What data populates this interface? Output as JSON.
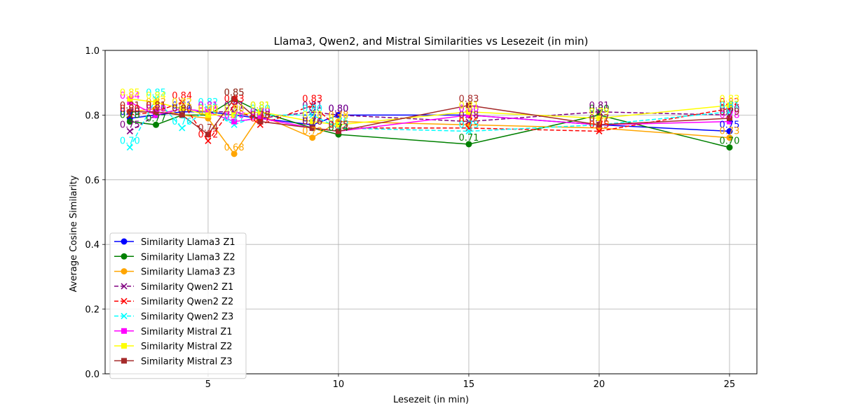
{
  "chart_data": {
    "type": "line",
    "title": "Llama3, Qwen2, and Mistral Similarities vs Lesezeit (in min)",
    "xlabel": "Lesezeit (in min)",
    "ylabel": "Average Cosine Similarity",
    "xlim": [
      1.05,
      26.05
    ],
    "ylim": [
      0.0,
      1.0
    ],
    "xticks": [
      5,
      10,
      15,
      20,
      25
    ],
    "yticks": [
      0.0,
      0.2,
      0.4,
      0.6,
      0.8,
      1.0
    ],
    "grid": true,
    "legend_position": "lower-left",
    "x": [
      2,
      3,
      4,
      5,
      6,
      7,
      9,
      10,
      15,
      20,
      25
    ],
    "series": [
      {
        "name": "Similarity Llama3 Z1",
        "color": "#0000ff",
        "marker": "circle",
        "dash": "solid",
        "values": [
          0.79,
          0.8,
          0.81,
          0.81,
          0.8,
          0.79,
          0.77,
          0.8,
          0.8,
          0.77,
          0.75
        ]
      },
      {
        "name": "Similarity Llama3 Z2",
        "color": "#008000",
        "marker": "circle",
        "dash": "solid",
        "values": [
          0.78,
          0.77,
          0.8,
          0.8,
          0.85,
          0.81,
          0.76,
          0.74,
          0.71,
          0.8,
          0.7
        ]
      },
      {
        "name": "Similarity Llama3 Z3",
        "color": "#ffa500",
        "marker": "circle",
        "dash": "solid",
        "values": [
          0.81,
          0.82,
          0.8,
          0.79,
          0.68,
          0.8,
          0.73,
          0.78,
          0.77,
          0.76,
          0.73
        ]
      },
      {
        "name": "Similarity Qwen2 Z1",
        "color": "#800080",
        "marker": "x",
        "dash": "dashed",
        "values": [
          0.75,
          0.8,
          0.82,
          0.81,
          0.81,
          0.79,
          0.81,
          0.8,
          0.78,
          0.81,
          0.8
        ]
      },
      {
        "name": "Similarity Qwen2 Z2",
        "color": "#ff0000",
        "marker": "x",
        "dash": "dashed",
        "values": [
          0.8,
          0.81,
          0.84,
          0.72,
          0.83,
          0.77,
          0.83,
          0.76,
          0.76,
          0.75,
          0.82
        ]
      },
      {
        "name": "Similarity Qwen2 Z3",
        "color": "#00ffff",
        "marker": "x",
        "dash": "dashed",
        "values": [
          0.7,
          0.85,
          0.76,
          0.82,
          0.77,
          0.8,
          0.8,
          0.76,
          0.75,
          0.77,
          0.81
        ]
      },
      {
        "name": "Similarity Mistral Z1",
        "color": "#ff00ff",
        "marker": "square",
        "dash": "solid",
        "values": [
          0.84,
          0.8,
          0.82,
          0.81,
          0.78,
          0.79,
          0.76,
          0.75,
          0.8,
          0.77,
          0.78
        ]
      },
      {
        "name": "Similarity Mistral Z2",
        "color": "#ffff00",
        "marker": "square",
        "dash": "solid",
        "values": [
          0.85,
          0.84,
          0.82,
          0.8,
          0.8,
          0.81,
          0.78,
          0.77,
          0.81,
          0.79,
          0.83
        ]
      },
      {
        "name": "Similarity Mistral Z3",
        "color": "#a52a2a",
        "marker": "square",
        "dash": "solid",
        "values": [
          0.81,
          0.81,
          0.8,
          0.74,
          0.85,
          0.78,
          0.76,
          0.75,
          0.83,
          0.77,
          0.79
        ]
      }
    ]
  }
}
